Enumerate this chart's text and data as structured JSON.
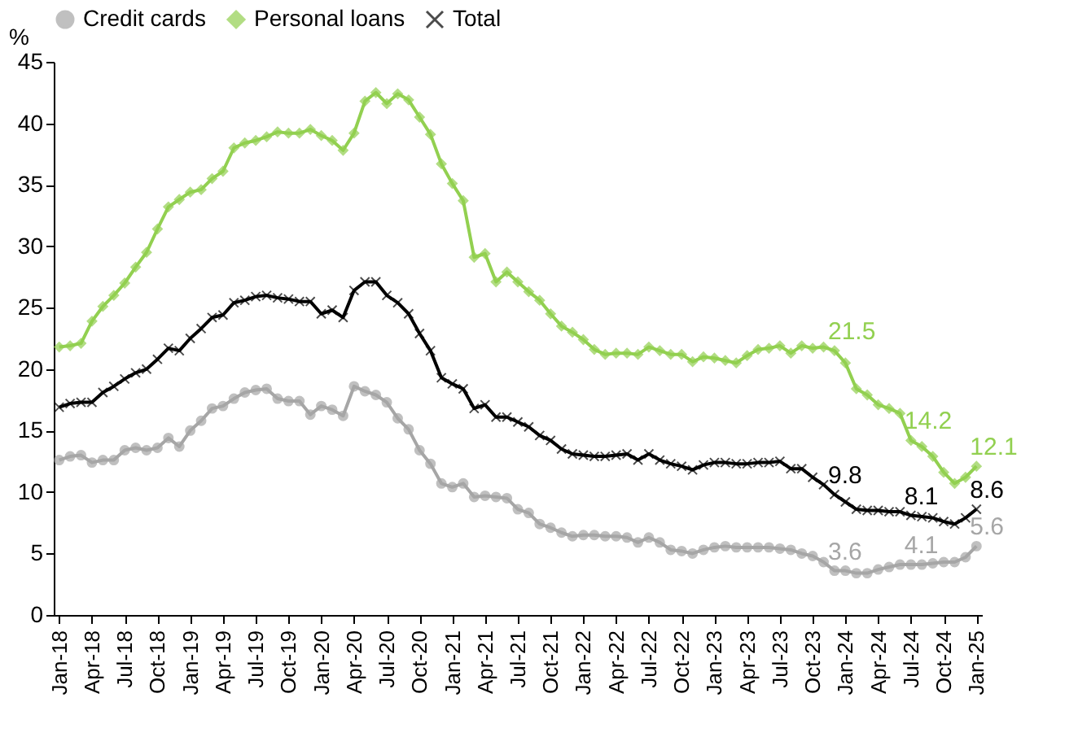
{
  "chart_data": {
    "type": "line",
    "ylabel": "%",
    "ylim": [
      0,
      45
    ],
    "yticks": [
      0,
      5,
      10,
      15,
      20,
      25,
      30,
      35,
      40,
      45
    ],
    "grid": false,
    "legend": "top",
    "categories": [
      "Jan-18",
      null,
      null,
      "Apr-18",
      null,
      null,
      "Jul-18",
      null,
      null,
      "Oct-18",
      null,
      null,
      "Jan-19",
      null,
      null,
      "Apr-19",
      null,
      null,
      "Jul-19",
      null,
      null,
      "Oct-19",
      null,
      null,
      "Jan-20",
      null,
      null,
      "Apr-20",
      null,
      null,
      "Jul-20",
      null,
      null,
      "Oct-20",
      null,
      null,
      "Jan-21",
      null,
      null,
      "Apr-21",
      null,
      null,
      "Jul-21",
      null,
      null,
      "Oct-21",
      null,
      null,
      "Jan-22",
      null,
      null,
      "Apr-22",
      null,
      null,
      "Jul-22",
      null,
      null,
      "Oct-22",
      null,
      null,
      "Jan-23",
      null,
      null,
      "Apr-23",
      null,
      null,
      "Jul-23",
      null,
      null,
      "Oct-23",
      null,
      null,
      "Jan-24",
      null,
      null,
      "Apr-24",
      null,
      null,
      "Jul-24",
      null,
      null,
      "Oct-24",
      null,
      null,
      "Jan-25"
    ],
    "series": [
      {
        "name": "Credit cards",
        "color": "#a6a6a6",
        "marker": "circle",
        "values": [
          12.6,
          12.9,
          13.0,
          12.4,
          12.6,
          12.6,
          13.4,
          13.6,
          13.4,
          13.6,
          14.4,
          13.7,
          15.0,
          15.8,
          16.8,
          17.0,
          17.6,
          18.1,
          18.3,
          18.4,
          17.6,
          17.4,
          17.4,
          16.3,
          17.0,
          16.7,
          16.2,
          18.6,
          18.2,
          17.9,
          17.3,
          16.0,
          15.1,
          13.4,
          12.3,
          10.7,
          10.4,
          10.7,
          9.6,
          9.7,
          9.6,
          9.5,
          8.6,
          8.3,
          7.4,
          7.1,
          6.7,
          6.4,
          6.5,
          6.5,
          6.4,
          6.4,
          6.3,
          5.9,
          6.3,
          5.9,
          5.3,
          5.2,
          5.0,
          5.3,
          5.5,
          5.6,
          5.5,
          5.5,
          5.5,
          5.5,
          5.4,
          5.3,
          5.0,
          4.8,
          4.3,
          3.6,
          3.6,
          3.4,
          3.4,
          3.7,
          3.9,
          4.1,
          4.1,
          4.1,
          4.2,
          4.3,
          4.3,
          4.7,
          5.6
        ],
        "value_labels": [
          null,
          null,
          null,
          null,
          null,
          null,
          null,
          null,
          null,
          null,
          null,
          null,
          null,
          null,
          null,
          null,
          null,
          null,
          null,
          null,
          null,
          null,
          null,
          null,
          null,
          null,
          null,
          null,
          null,
          null,
          null,
          null,
          null,
          null,
          null,
          null,
          null,
          null,
          null,
          null,
          null,
          null,
          null,
          null,
          null,
          null,
          null,
          null,
          null,
          null,
          null,
          null,
          null,
          null,
          null,
          null,
          null,
          null,
          null,
          null,
          null,
          null,
          null,
          null,
          null,
          null,
          null,
          null,
          null,
          null,
          null,
          "3.6",
          null,
          null,
          null,
          null,
          null,
          null,
          "4.1",
          null,
          null,
          null,
          null,
          null,
          "5.6"
        ]
      },
      {
        "name": "Personal loans",
        "color": "#92d050",
        "marker": "diamond",
        "values": [
          21.8,
          21.9,
          22.1,
          23.9,
          25.1,
          26.0,
          27.0,
          28.3,
          29.5,
          31.4,
          33.2,
          33.8,
          34.4,
          34.6,
          35.5,
          36.1,
          38.0,
          38.4,
          38.6,
          38.9,
          39.3,
          39.2,
          39.2,
          39.5,
          39.0,
          38.6,
          37.8,
          39.2,
          41.8,
          42.5,
          41.6,
          42.4,
          41.9,
          40.5,
          39.1,
          36.7,
          35.1,
          33.7,
          29.1,
          29.4,
          27.1,
          27.9,
          27.1,
          26.3,
          25.6,
          24.5,
          23.5,
          23.0,
          22.4,
          21.6,
          21.2,
          21.3,
          21.3,
          21.2,
          21.8,
          21.5,
          21.2,
          21.2,
          20.6,
          21.0,
          20.9,
          20.7,
          20.5,
          21.1,
          21.6,
          21.7,
          21.9,
          21.3,
          21.9,
          21.7,
          21.8,
          21.5,
          20.5,
          18.4,
          17.9,
          17.1,
          16.8,
          16.4,
          14.2,
          13.7,
          12.9,
          11.6,
          10.7,
          11.2,
          12.1
        ],
        "value_labels": [
          null,
          null,
          null,
          null,
          null,
          null,
          null,
          null,
          null,
          null,
          null,
          null,
          null,
          null,
          null,
          null,
          null,
          null,
          null,
          null,
          null,
          null,
          null,
          null,
          null,
          null,
          null,
          null,
          null,
          null,
          null,
          null,
          null,
          null,
          null,
          null,
          null,
          null,
          null,
          null,
          null,
          null,
          null,
          null,
          null,
          null,
          null,
          null,
          null,
          null,
          null,
          null,
          null,
          null,
          null,
          null,
          null,
          null,
          null,
          null,
          null,
          null,
          null,
          null,
          null,
          null,
          null,
          null,
          null,
          null,
          null,
          "21.5",
          null,
          null,
          null,
          null,
          null,
          null,
          "14.2",
          null,
          null,
          null,
          null,
          null,
          "12.1"
        ]
      },
      {
        "name": "Total",
        "color": "#000000",
        "marker": "cross",
        "values": [
          16.9,
          17.2,
          17.3,
          17.3,
          18.1,
          18.6,
          19.2,
          19.7,
          20.0,
          20.8,
          21.7,
          21.5,
          22.5,
          23.3,
          24.2,
          24.4,
          25.4,
          25.6,
          25.9,
          26.0,
          25.8,
          25.7,
          25.5,
          25.5,
          24.5,
          24.8,
          24.2,
          26.4,
          27.1,
          27.1,
          26.0,
          25.4,
          24.5,
          22.9,
          21.5,
          19.3,
          18.8,
          18.4,
          16.8,
          17.1,
          16.1,
          16.1,
          15.7,
          15.3,
          14.6,
          14.2,
          13.5,
          13.1,
          13.0,
          12.9,
          12.9,
          13.0,
          13.1,
          12.6,
          13.1,
          12.6,
          12.3,
          12.1,
          11.8,
          12.2,
          12.4,
          12.4,
          12.3,
          12.3,
          12.4,
          12.4,
          12.5,
          11.9,
          11.9,
          11.2,
          10.6,
          9.8,
          9.2,
          8.6,
          8.5,
          8.5,
          8.4,
          8.4,
          8.1,
          8.0,
          7.9,
          7.6,
          7.4,
          7.9,
          8.6
        ],
        "value_labels": [
          null,
          null,
          null,
          null,
          null,
          null,
          null,
          null,
          null,
          null,
          null,
          null,
          null,
          null,
          null,
          null,
          null,
          null,
          null,
          null,
          null,
          null,
          null,
          null,
          null,
          null,
          null,
          null,
          null,
          null,
          null,
          null,
          null,
          null,
          null,
          null,
          null,
          null,
          null,
          null,
          null,
          null,
          null,
          null,
          null,
          null,
          null,
          null,
          null,
          null,
          null,
          null,
          null,
          null,
          null,
          null,
          null,
          null,
          null,
          null,
          null,
          null,
          null,
          null,
          null,
          null,
          null,
          null,
          null,
          null,
          null,
          "9.8",
          null,
          null,
          null,
          null,
          null,
          null,
          "8.1",
          null,
          null,
          null,
          null,
          null,
          "8.6"
        ]
      }
    ]
  }
}
